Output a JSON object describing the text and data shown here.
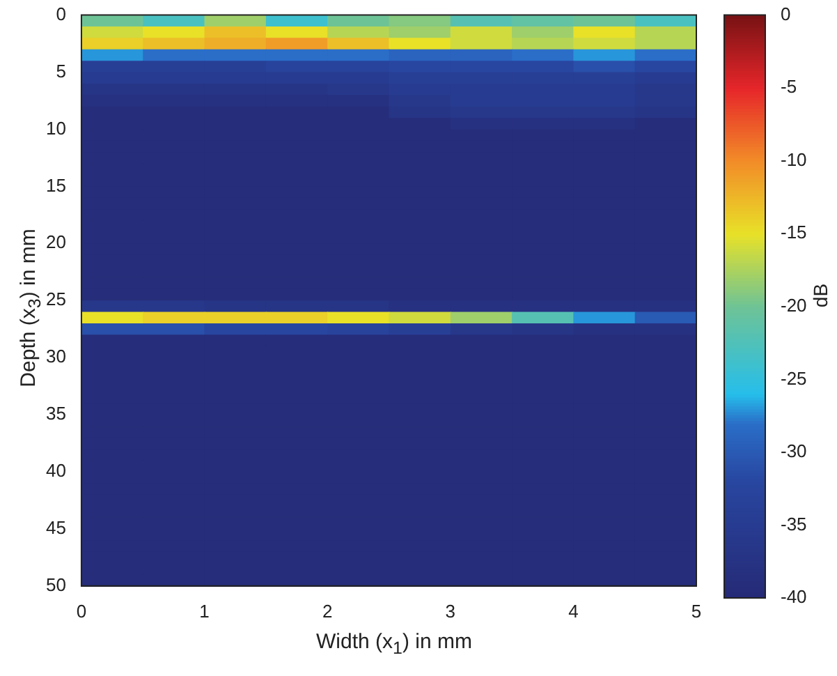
{
  "chart_data": {
    "type": "heatmap",
    "xlabel": "Width (x$_{1}$) in mm",
    "ylabel": "Depth (x$_{3}$) in mm",
    "clabel": "dB",
    "xlim": [
      0,
      5
    ],
    "ylim": [
      50,
      0
    ],
    "xticks": [
      0,
      1,
      2,
      3,
      4,
      5
    ],
    "yticks": [
      0,
      5,
      10,
      15,
      20,
      25,
      30,
      35,
      40,
      45,
      50
    ],
    "clim": [
      -40,
      0
    ],
    "cticks": [
      -40,
      -35,
      -30,
      -25,
      -20,
      -15,
      -10,
      -5,
      0
    ],
    "cells": [
      [
        -20,
        -23,
        -18,
        -24,
        -20,
        -19,
        -22,
        -21,
        -20,
        -23
      ],
      [
        -16,
        -15,
        -13,
        -15,
        -17,
        -18,
        -16,
        -18,
        -15,
        -17
      ],
      [
        -14,
        -13,
        -12,
        -11,
        -13,
        -15,
        -16,
        -17,
        -16,
        -17
      ],
      [
        -27,
        -28,
        -28,
        -28,
        -28,
        -29,
        -29,
        -28,
        -27,
        -28
      ],
      [
        -34,
        -34,
        -34,
        -33,
        -33,
        -32,
        -32,
        -32,
        -31,
        -32
      ],
      [
        -35,
        -35,
        -35,
        -35,
        -35,
        -34,
        -34,
        -34,
        -34,
        -35
      ],
      [
        -37,
        -37,
        -37,
        -37,
        -36,
        -35,
        -35,
        -35,
        -35,
        -36
      ],
      [
        -38,
        -38,
        -38,
        -38,
        -38,
        -36,
        -35,
        -35,
        -35,
        -36
      ],
      [
        -39,
        -39,
        -39,
        -39,
        -39,
        -37,
        -36,
        -36,
        -36,
        -37
      ],
      [
        -39,
        -39,
        -39,
        -39,
        -39,
        -39,
        -38,
        -38,
        -38,
        -39
      ],
      [
        -39,
        -39,
        -39,
        -39,
        -39,
        -39,
        -39,
        -39,
        -39,
        -39
      ],
      [
        -39,
        -39,
        -39,
        -39,
        -39,
        -39,
        -39,
        -39,
        -39,
        -39
      ],
      [
        -39,
        -39,
        -39,
        -39,
        -39,
        -39,
        -39,
        -39,
        -39,
        -39
      ],
      [
        -39,
        -39,
        -39,
        -39,
        -39,
        -39,
        -39,
        -39,
        -39,
        -39
      ],
      [
        -39,
        -39,
        -39,
        -39,
        -39,
        -39,
        -39,
        -39,
        -39,
        -39
      ],
      [
        -39,
        -39,
        -39,
        -39,
        -39,
        -39,
        -39,
        -39,
        -39,
        -39
      ],
      [
        -39,
        -39,
        -39,
        -39,
        -39,
        -39,
        -39,
        -39,
        -39,
        -39
      ],
      [
        -39,
        -39,
        -39,
        -39,
        -39,
        -39,
        -39,
        -39,
        -39,
        -39
      ],
      [
        -39,
        -39,
        -39,
        -39,
        -39,
        -39,
        -39,
        -39,
        -39,
        -39
      ],
      [
        -39,
        -39,
        -39,
        -39,
        -39,
        -39,
        -39,
        -39,
        -39,
        -39
      ],
      [
        -39,
        -39,
        -39,
        -39,
        -39,
        -39,
        -39,
        -39,
        -39,
        -39
      ],
      [
        -39,
        -39,
        -39,
        -39,
        -39,
        -39,
        -39,
        -39,
        -39,
        -39
      ],
      [
        -39,
        -39,
        -39,
        -39,
        -39,
        -39,
        -39,
        -39,
        -39,
        -39
      ],
      [
        -39,
        -39,
        -39,
        -39,
        -39,
        -39,
        -39,
        -39,
        -39,
        -39
      ],
      [
        -39,
        -39,
        -39,
        -39,
        -39,
        -39,
        -39,
        -39,
        -39,
        -39
      ],
      [
        -36,
        -36,
        -37,
        -37,
        -37,
        -38,
        -38,
        -38,
        -38,
        -38
      ],
      [
        -15,
        -14,
        -14,
        -14,
        -15,
        -16,
        -18,
        -22,
        -27,
        -30
      ],
      [
        -31,
        -31,
        -32,
        -32,
        -33,
        -34,
        -36,
        -37,
        -38,
        -38
      ],
      [
        -39,
        -39,
        -39,
        -39,
        -39,
        -39,
        -39,
        -39,
        -39,
        -39
      ],
      [
        -39,
        -39,
        -39,
        -39,
        -39,
        -39,
        -39,
        -39,
        -39,
        -39
      ],
      [
        -39,
        -39,
        -39,
        -39,
        -39,
        -39,
        -39,
        -39,
        -39,
        -39
      ],
      [
        -39,
        -39,
        -39,
        -39,
        -39,
        -39,
        -39,
        -39,
        -39,
        -39
      ],
      [
        -39,
        -39,
        -39,
        -39,
        -39,
        -39,
        -39,
        -39,
        -39,
        -39
      ],
      [
        -39,
        -39,
        -39,
        -39,
        -39,
        -39,
        -39,
        -39,
        -39,
        -39
      ],
      [
        -39,
        -39,
        -39,
        -39,
        -39,
        -39,
        -39,
        -39,
        -39,
        -39
      ],
      [
        -39,
        -39,
        -39,
        -39,
        -39,
        -39,
        -39,
        -39,
        -39,
        -39
      ],
      [
        -39,
        -39,
        -39,
        -39,
        -39,
        -39,
        -39,
        -39,
        -39,
        -39
      ],
      [
        -39,
        -39,
        -39,
        -39,
        -39,
        -39,
        -39,
        -39,
        -39,
        -39
      ],
      [
        -39,
        -39,
        -39,
        -39,
        -39,
        -39,
        -39,
        -39,
        -39,
        -39
      ],
      [
        -39,
        -39,
        -39,
        -39,
        -39,
        -39,
        -39,
        -39,
        -39,
        -39
      ],
      [
        -39,
        -39,
        -39,
        -39,
        -39,
        -39,
        -39,
        -39,
        -39,
        -39
      ],
      [
        -39,
        -39,
        -39,
        -39,
        -39,
        -39,
        -39,
        -39,
        -39,
        -39
      ],
      [
        -39,
        -39,
        -39,
        -39,
        -39,
        -39,
        -39,
        -39,
        -39,
        -39
      ],
      [
        -39,
        -39,
        -39,
        -39,
        -39,
        -39,
        -39,
        -39,
        -39,
        -39
      ],
      [
        -39,
        -39,
        -39,
        -39,
        -39,
        -39,
        -39,
        -39,
        -39,
        -39
      ],
      [
        -39,
        -39,
        -39,
        -39,
        -39,
        -39,
        -39,
        -39,
        -39,
        -39
      ],
      [
        -39,
        -39,
        -39,
        -39,
        -39,
        -39,
        -39,
        -39,
        -39,
        -39
      ],
      [
        -39,
        -39,
        -39,
        -39,
        -39,
        -39,
        -39,
        -39,
        -39,
        -39
      ],
      [
        -39,
        -39,
        -39,
        -39,
        -39,
        -39,
        -39,
        -39,
        -39,
        -39
      ],
      [
        -39,
        -39,
        -39,
        -39,
        -39,
        -39,
        -39,
        -39,
        -39,
        -39
      ]
    ]
  }
}
